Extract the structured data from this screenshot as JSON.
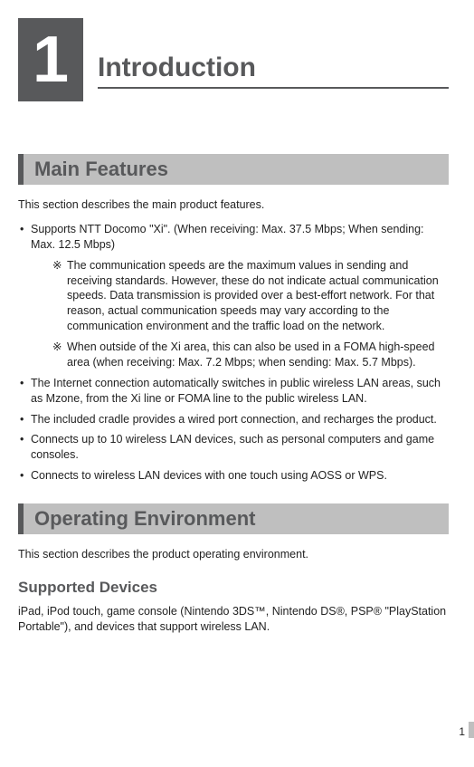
{
  "chapter": {
    "number": "1",
    "title": "Introduction"
  },
  "section1": {
    "heading": "Main Features",
    "intro": "This section describes the main product features.",
    "bullets": [
      "Supports NTT Docomo \"Xi\". (When receiving: Max. 37.5 Mbps; When sending: Max. 12.5 Mbps)",
      "The Internet connection automatically switches in public wireless LAN areas, such as Mzone, from the Xi line or FOMA line to the public wireless LAN.",
      "The included cradle provides a wired port connection, and recharges the product.",
      "Connects up to 10 wireless LAN devices, such as personal computers and game consoles.",
      "Connects to wireless LAN devices with one touch using AOSS or WPS."
    ],
    "notes": [
      "The communication speeds are the maximum values in sending and receiving standards. However, these do not indicate actual communication speeds. Data transmission is provided over a best-effort network. For that reason, actual communication speeds may vary according to the communication environment and the traffic load on the network.",
      "When outside of the Xi area, this can also be used in a FOMA high-speed area (when receiving: Max. 7.2 Mbps; when sending: Max. 5.7 Mbps)."
    ],
    "note_mark": "※"
  },
  "section2": {
    "heading": "Operating Environment",
    "intro": "This section describes the product operating environment.",
    "sub_heading": "Supported Devices",
    "sub_body": "iPad, iPod touch, game console (Nintendo 3DS™, Nintendo DS®, PSP® \"PlayStation Portable\"), and devices that support wireless LAN."
  },
  "page_number": "1"
}
